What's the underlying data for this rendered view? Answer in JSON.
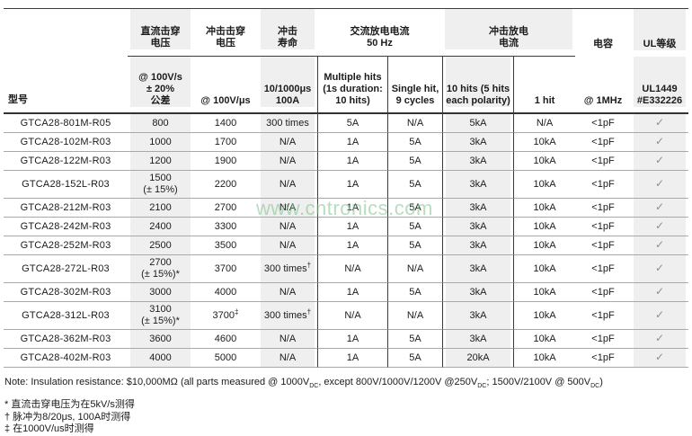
{
  "table": {
    "model_header": "型号",
    "groups": [
      {
        "label": "直流击穿\n电压"
      },
      {
        "label": "冲击击穿\n电压"
      },
      {
        "label": "冲击\n寿命"
      },
      {
        "label": "交流放电电流\n50 Hz"
      },
      {
        "label": "冲击放电\n电流"
      },
      {
        "label": "电容"
      },
      {
        "label": "UL等级"
      }
    ],
    "subs": [
      "@ 100V/s\n± 20%\n公差",
      "@ 100V/μs",
      "10/1000μs\n100A",
      "Multiple hits\n(1s duration:\n10 hits)",
      "Single hit,\n9 cycles",
      "10 hits (5 hits\neach polarity)",
      "1 hit",
      "@ 1MHz",
      "UL1449\n#E332226"
    ],
    "check_symbol": "✓",
    "rows": [
      {
        "model": "GTCA28-801M-R05",
        "cells": [
          "800",
          "1400",
          "300 times",
          "5A",
          "N/A",
          "5kA",
          "N/A",
          "<1pF",
          "✓"
        ]
      },
      {
        "model": "GTCA28-102M-R03",
        "cells": [
          "1000",
          "1700",
          "N/A",
          "1A",
          "5A",
          "3kA",
          "10kA",
          "<1pF",
          "✓"
        ]
      },
      {
        "model": "GTCA28-122M-R03",
        "cells": [
          "1200",
          "1900",
          "N/A",
          "1A",
          "5A",
          "3kA",
          "10kA",
          "<1pF",
          "✓"
        ]
      },
      {
        "model": "GTCA28-152L-R03",
        "cells": [
          "1500\n(± 15%)",
          "2200",
          "N/A",
          "1A",
          "5A",
          "3kA",
          "10kA",
          "<1pF",
          "✓"
        ]
      },
      {
        "model": "GTCA28-212M-R03",
        "cells": [
          "2100",
          "2700",
          "N/A",
          "1A",
          "5A",
          "3kA",
          "10kA",
          "<1pF",
          "✓"
        ]
      },
      {
        "model": "GTCA28-242M-R03",
        "cells": [
          "2400",
          "3300",
          "N/A",
          "1A",
          "5A",
          "3kA",
          "10kA",
          "<1pF",
          "✓"
        ]
      },
      {
        "model": "GTCA28-252M-R03",
        "cells": [
          "2500",
          "3500",
          "N/A",
          "1A",
          "5A",
          "3kA",
          "10kA",
          "<1pF",
          "✓"
        ]
      },
      {
        "model": "GTCA28-272L-R03",
        "cells": [
          "2700\n(± 15%)*",
          "3700",
          "300 times|†",
          "N/A",
          "N/A",
          "3kA",
          "10kA",
          "<1pF",
          "✓"
        ]
      },
      {
        "model": "GTCA28-302M-R03",
        "cells": [
          "3000",
          "4000",
          "N/A",
          "1A",
          "5A",
          "3kA",
          "10kA",
          "<1pF",
          "✓"
        ]
      },
      {
        "model": "GTCA28-312L-R03",
        "cells": [
          "3100\n(± 15%)*",
          "3700|‡",
          "300 times|†",
          "N/A",
          "N/A",
          "3kA",
          "10kA",
          "<1pF",
          "✓"
        ]
      },
      {
        "model": "GTCA28-362M-R03",
        "cells": [
          "3600",
          "4600",
          "N/A",
          "1A",
          "5A",
          "3kA",
          "10kA",
          "<1pF",
          "✓"
        ]
      },
      {
        "model": "GTCA28-402M-R03",
        "cells": [
          "4000",
          "5000",
          "N/A",
          "1A",
          "5A",
          "20kA",
          "10kA",
          "<1pF",
          "✓"
        ]
      }
    ]
  },
  "note": {
    "parts": [
      {
        "t": "Note: Insulation resistance: $10,000MΩ (all parts measured @ 1000V"
      },
      {
        "sub": "DC"
      },
      {
        "t": ", except 800V/1000V/1200V @250V"
      },
      {
        "sub": "DC"
      },
      {
        "t": "; 1500V/2100V @ 500V"
      },
      {
        "sub": "DC"
      },
      {
        "t": ")"
      }
    ]
  },
  "footnotes": [
    {
      "marker": "*",
      "text": "直流击穿电压为在5kV/s测得"
    },
    {
      "marker": "†",
      "text": "脉冲为8/20μs, 100A时测得"
    },
    {
      "marker": "‡",
      "text": "在1000V/us时测得"
    }
  ],
  "watermark": {
    "text": "www.cntronics.com",
    "color": "#7fc08c"
  },
  "colors": {
    "header_fill": "#efefef",
    "check_gray": "#8a9097",
    "rule_dark": "#3c3c3c",
    "rule_light": "#a8a8a8"
  }
}
